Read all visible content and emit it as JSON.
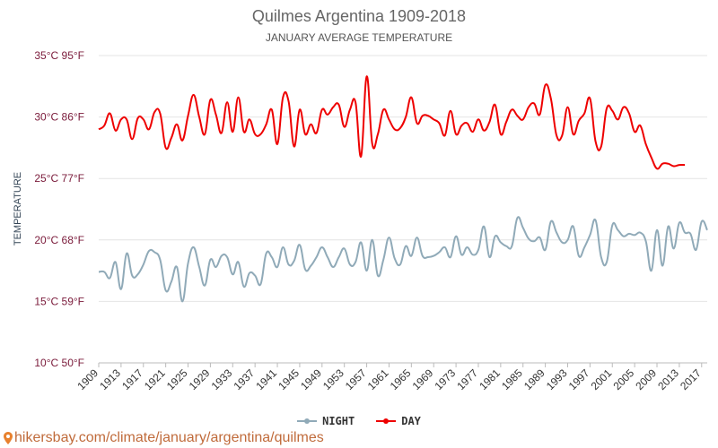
{
  "header": {
    "title": "Quilmes Argentina 1909-2018",
    "subtitle": "JANUARY AVERAGE TEMPERATURE"
  },
  "footer": {
    "site": "hikersbay.com/climate/january/argentina/quilmes",
    "icon": "map-pin-icon"
  },
  "legend": [
    {
      "label": "NIGHT",
      "color": "#90aab8"
    },
    {
      "label": "DAY",
      "color": "#ee0000"
    }
  ],
  "chart_data": {
    "type": "line",
    "title": "Quilmes Argentina 1909-2018",
    "subtitle": "JANUARY AVERAGE TEMPERATURE",
    "xlabel": "",
    "ylabel": "TEMPERATURE",
    "xlim": [
      1909,
      2018
    ],
    "ylim": [
      10,
      35
    ],
    "yticks": [
      {
        "value": 35,
        "label": "35°C 95°F"
      },
      {
        "value": 30,
        "label": "30°C 86°F"
      },
      {
        "value": 25,
        "label": "25°C 77°F"
      },
      {
        "value": 20,
        "label": "20°C 68°F"
      },
      {
        "value": 15,
        "label": "15°C 59°F"
      },
      {
        "value": 10,
        "label": "10°C 50°F"
      }
    ],
    "xticks": [
      1909,
      1913,
      1917,
      1921,
      1925,
      1929,
      1933,
      1937,
      1941,
      1945,
      1949,
      1953,
      1957,
      1961,
      1965,
      1969,
      1973,
      1977,
      1981,
      1985,
      1989,
      1993,
      1997,
      2001,
      2005,
      2009,
      2013,
      2017
    ],
    "grid": true,
    "legend_position": "bottom",
    "series": [
      {
        "name": "NIGHT",
        "color": "#90aab8",
        "x": [
          1909,
          1910,
          1911,
          1912,
          1913,
          1914,
          1915,
          1916,
          1917,
          1918,
          1919,
          1920,
          1921,
          1922,
          1923,
          1924,
          1925,
          1926,
          1927,
          1928,
          1929,
          1930,
          1931,
          1932,
          1933,
          1934,
          1935,
          1936,
          1937,
          1938,
          1939,
          1940,
          1941,
          1942,
          1943,
          1944,
          1945,
          1946,
          1947,
          1948,
          1949,
          1950,
          1951,
          1952,
          1953,
          1954,
          1955,
          1956,
          1957,
          1958,
          1959,
          1960,
          1961,
          1962,
          1963,
          1964,
          1965,
          1966,
          1967,
          1968,
          1969,
          1970,
          1971,
          1972,
          1973,
          1974,
          1975,
          1976,
          1977,
          1978,
          1979,
          1980,
          1981,
          1982,
          1983,
          1984,
          1985,
          1986,
          1987,
          1988,
          1989,
          1990,
          1991,
          1992,
          1993,
          1994,
          1995,
          1996,
          1997,
          1998,
          1999,
          2000,
          2001,
          2002,
          2003,
          2004,
          2005,
          2006,
          2007,
          2008,
          2009,
          2010,
          2011,
          2012,
          2013,
          2014,
          2015,
          2016,
          2017,
          2018
        ],
        "values": [
          17.4,
          17.4,
          16.9,
          18.2,
          16.0,
          18.9,
          17.1,
          17.2,
          18.0,
          19.1,
          19.0,
          18.4,
          15.9,
          16.6,
          17.8,
          15.0,
          18.1,
          19.4,
          17.8,
          16.3,
          18.4,
          17.8,
          18.7,
          18.6,
          17.2,
          18.2,
          16.2,
          17.3,
          17.1,
          16.4,
          18.9,
          18.6,
          17.8,
          19.4,
          18.0,
          18.3,
          19.6,
          17.6,
          17.9,
          18.6,
          19.4,
          18.6,
          17.8,
          18.6,
          19.3,
          18.0,
          18.2,
          19.8,
          17.5,
          20.0,
          17.1,
          18.4,
          20.2,
          18.5,
          18.0,
          19.5,
          18.7,
          20.2,
          18.7,
          18.6,
          18.7,
          19.0,
          19.4,
          18.6,
          20.3,
          18.8,
          19.4,
          18.8,
          19.2,
          21.1,
          18.6,
          20.3,
          19.8,
          19.5,
          19.5,
          21.8,
          21.0,
          20.1,
          19.9,
          20.2,
          19.2,
          21.5,
          20.6,
          19.8,
          20.0,
          21.1,
          18.7,
          19.4,
          20.4,
          21.6,
          18.6,
          18.2,
          21.2,
          20.8,
          20.3,
          20.5,
          20.4,
          20.6,
          19.9,
          17.5,
          20.8,
          17.9,
          21.1,
          19.3,
          21.4,
          20.6,
          20.5,
          19.2,
          21.5,
          20.8
        ]
      },
      {
        "name": "DAY",
        "color": "#ee0000",
        "x": [
          1909,
          1910,
          1911,
          1912,
          1913,
          1914,
          1915,
          1916,
          1917,
          1918,
          1919,
          1920,
          1921,
          1922,
          1923,
          1924,
          1925,
          1926,
          1927,
          1928,
          1929,
          1930,
          1931,
          1932,
          1933,
          1934,
          1935,
          1936,
          1937,
          1938,
          1939,
          1940,
          1941,
          1942,
          1943,
          1944,
          1945,
          1946,
          1947,
          1948,
          1949,
          1950,
          1951,
          1952,
          1953,
          1954,
          1955,
          1956,
          1957,
          1958,
          1959,
          1960,
          1961,
          1962,
          1963,
          1964,
          1965,
          1966,
          1967,
          1968,
          1969,
          1970,
          1971,
          1972,
          1973,
          1974,
          1975,
          1976,
          1977,
          1978,
          1979,
          1980,
          1981,
          1982,
          1983,
          1984,
          1985,
          1986,
          1987,
          1988,
          1989,
          1990,
          1991,
          1992,
          1993,
          1994,
          1995,
          1996,
          1997,
          1998,
          1999,
          2000,
          2001,
          2002,
          2003,
          2004,
          2005,
          2006,
          2007,
          2008,
          2009,
          2010,
          2011,
          2012,
          2013,
          2014
        ],
        "values": [
          29.0,
          29.3,
          30.3,
          28.9,
          29.8,
          29.8,
          28.2,
          29.9,
          29.8,
          29.0,
          30.4,
          30.3,
          27.5,
          28.3,
          29.4,
          28.1,
          30.1,
          31.8,
          30.0,
          28.6,
          31.4,
          30.2,
          28.7,
          31.2,
          28.8,
          31.6,
          28.8,
          29.8,
          28.6,
          28.6,
          29.4,
          30.6,
          27.8,
          31.6,
          31.3,
          27.6,
          30.6,
          28.6,
          29.4,
          28.7,
          30.6,
          30.2,
          30.8,
          31.0,
          29.2,
          30.6,
          31.2,
          26.8,
          33.3,
          27.8,
          28.6,
          30.6,
          29.8,
          29.0,
          29.1,
          30.0,
          31.6,
          29.5,
          30.1,
          30.1,
          29.8,
          29.5,
          28.5,
          30.5,
          28.6,
          29.3,
          29.5,
          28.8,
          29.8,
          28.9,
          29.6,
          31.0,
          28.6,
          29.6,
          30.6,
          30.1,
          29.8,
          30.8,
          31.1,
          30.2,
          32.6,
          31.5,
          28.5,
          28.5,
          30.8,
          28.6,
          29.7,
          30.3,
          31.5,
          28.0,
          27.6,
          30.7,
          30.5,
          29.8,
          30.8,
          30.3,
          28.8,
          29.3,
          27.8,
          26.7,
          25.8,
          26.2,
          26.2,
          26.0,
          26.1,
          26.1
        ]
      }
    ]
  }
}
